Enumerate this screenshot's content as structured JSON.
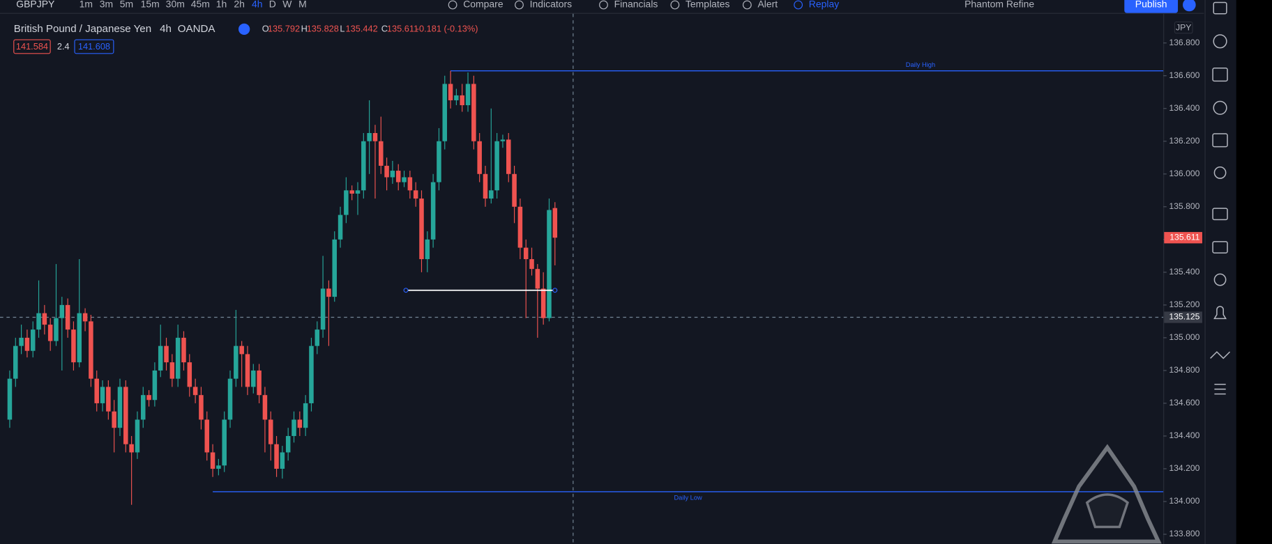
{
  "toolbar": {
    "symbol": "GBPJPY",
    "intervals": [
      "1m",
      "3m",
      "5m",
      "15m",
      "30m",
      "45m",
      "1h",
      "2h",
      "4h",
      "D",
      "W",
      "M"
    ],
    "active_interval": 8,
    "buttons": [
      "Compare",
      "Indicators",
      "Financials",
      "Templates",
      "Alert",
      "Replay"
    ],
    "layout_name": "Phantom Refine",
    "publish": "Publish"
  },
  "header": {
    "name": "British Pound / Japanese Yen",
    "interval": "4h",
    "exchange": "OANDA",
    "ohlc": [
      {
        "key": "O",
        "value": "135.792"
      },
      {
        "key": "H",
        "value": "135.828"
      },
      {
        "key": "L",
        "value": "135.442"
      },
      {
        "key": "C",
        "value": "135.611"
      }
    ],
    "change": "-0.181 (-0.13%)",
    "sell": "141.584",
    "spread": "2.4",
    "buy": "141.608"
  },
  "chart_data": {
    "type": "candlestick",
    "currency": "JPY",
    "up_color": "#26a69a",
    "down_color": "#ef5350",
    "open": [
      134.5,
      134.75,
      134.95,
      135.0,
      134.92,
      135.05,
      135.15,
      135.08,
      134.98,
      135.12,
      135.2,
      135.05,
      134.85,
      135.15,
      135.1,
      134.75,
      134.6,
      134.7,
      134.55,
      134.45,
      134.7,
      134.35,
      134.3,
      134.5,
      134.65,
      134.62,
      134.8,
      134.95,
      134.85,
      134.75,
      135.0,
      134.85,
      134.7,
      134.65,
      134.5,
      134.3,
      134.2,
      134.22,
      134.5,
      134.75,
      134.95,
      134.9,
      134.7,
      134.8,
      134.65,
      134.5,
      134.35,
      134.2,
      134.3,
      134.4,
      134.5,
      134.45,
      134.6,
      134.95,
      135.05,
      135.3,
      135.25,
      135.6,
      135.75,
      135.9,
      135.88,
      135.9,
      136.2,
      136.25,
      136.2,
      136.05,
      135.98,
      136.02,
      135.95,
      135.98,
      135.9,
      135.85,
      135.48,
      135.6,
      135.95,
      136.2,
      136.55,
      136.45,
      136.48,
      136.42,
      136.55,
      136.2,
      136.0,
      135.85,
      135.9,
      136.2,
      136.21,
      136.0,
      135.8,
      135.55,
      135.48,
      135.42,
      135.3,
      135.12,
      135.792
    ],
    "high": [
      134.8,
      135.0,
      135.08,
      135.05,
      135.1,
      135.35,
      135.2,
      135.12,
      135.45,
      135.25,
      135.24,
      135.1,
      135.48,
      135.18,
      135.14,
      134.8,
      134.74,
      134.74,
      134.62,
      134.75,
      134.74,
      134.4,
      134.55,
      134.7,
      134.68,
      134.85,
      135.08,
      135.0,
      134.9,
      135.08,
      135.04,
      134.9,
      134.75,
      134.7,
      134.55,
      134.35,
      134.26,
      134.55,
      134.8,
      135.17,
      134.98,
      134.95,
      134.84,
      134.84,
      134.7,
      134.55,
      134.4,
      134.34,
      134.45,
      134.55,
      134.55,
      134.65,
      135.0,
      135.1,
      135.5,
      135.35,
      135.65,
      135.8,
      135.98,
      135.93,
      135.95,
      136.25,
      136.45,
      136.3,
      136.35,
      136.1,
      136.08,
      136.06,
      136.02,
      136.02,
      135.95,
      135.9,
      135.65,
      136.0,
      136.28,
      136.6,
      136.63,
      136.52,
      136.55,
      136.62,
      136.6,
      136.25,
      136.05,
      136.4,
      136.25,
      136.24,
      136.25,
      136.05,
      135.85,
      135.6,
      135.55,
      135.45,
      135.4,
      135.85,
      135.828
    ],
    "low": [
      134.45,
      134.7,
      134.9,
      134.88,
      134.88,
      135.0,
      135.02,
      134.92,
      134.95,
      134.8,
      135.0,
      134.8,
      134.82,
      135.04,
      134.7,
      134.55,
      134.55,
      134.5,
      134.3,
      134.4,
      134.3,
      133.98,
      134.26,
      134.45,
      134.58,
      134.58,
      134.76,
      134.8,
      134.7,
      134.7,
      134.8,
      134.64,
      134.6,
      134.44,
      134.25,
      134.15,
      134.16,
      134.18,
      134.45,
      134.7,
      134.7,
      134.65,
      134.66,
      134.6,
      134.3,
      134.25,
      134.15,
      134.14,
      134.25,
      134.36,
      134.4,
      134.4,
      134.55,
      134.9,
      135.0,
      134.95,
      135.22,
      135.55,
      135.7,
      135.84,
      135.75,
      135.85,
      136.0,
      135.85,
      136.0,
      135.9,
      135.94,
      135.9,
      135.92,
      135.85,
      135.8,
      135.4,
      135.4,
      135.55,
      135.9,
      136.15,
      136.4,
      136.42,
      136.38,
      136.38,
      136.15,
      135.95,
      135.8,
      135.82,
      135.85,
      136.16,
      135.95,
      135.7,
      135.48,
      135.12,
      135.38,
      135.0,
      135.08,
      135.1,
      135.442
    ],
    "close": [
      134.75,
      134.95,
      135.0,
      134.92,
      135.05,
      135.15,
      135.08,
      134.98,
      135.12,
      135.2,
      135.05,
      134.85,
      135.15,
      135.1,
      134.75,
      134.6,
      134.7,
      134.55,
      134.45,
      134.7,
      134.35,
      134.3,
      134.5,
      134.65,
      134.62,
      134.8,
      134.95,
      134.85,
      134.75,
      135.0,
      134.85,
      134.7,
      134.65,
      134.5,
      134.3,
      134.2,
      134.22,
      134.5,
      134.75,
      134.95,
      134.9,
      134.7,
      134.8,
      134.65,
      134.5,
      134.35,
      134.2,
      134.3,
      134.4,
      134.5,
      134.45,
      134.6,
      134.95,
      135.05,
      135.3,
      135.25,
      135.6,
      135.75,
      135.9,
      135.88,
      135.9,
      136.2,
      136.25,
      136.2,
      136.05,
      135.98,
      136.02,
      135.95,
      135.98,
      135.9,
      135.85,
      135.48,
      135.6,
      135.95,
      136.2,
      136.55,
      136.45,
      136.48,
      136.42,
      136.55,
      136.2,
      136.0,
      135.85,
      135.9,
      136.2,
      136.21,
      136.0,
      135.8,
      135.55,
      135.48,
      135.42,
      135.3,
      135.12,
      135.78,
      135.611
    ],
    "ylim": [
      133.75,
      136.95
    ],
    "yticks": [
      {
        "value": 133.8,
        "label": "133.800"
      },
      {
        "value": 134.0,
        "label": "134.000"
      },
      {
        "value": 134.2,
        "label": "134.200"
      },
      {
        "value": 134.4,
        "label": "134.400"
      },
      {
        "value": 134.6,
        "label": "134.600"
      },
      {
        "value": 134.8,
        "label": "134.800"
      },
      {
        "value": 135.0,
        "label": "135.000"
      },
      {
        "value": 135.2,
        "label": "135.200"
      },
      {
        "value": 135.4,
        "label": "135.400"
      },
      {
        "value": 135.6,
        "label": "135.600"
      },
      {
        "value": 135.8,
        "label": "135.800"
      },
      {
        "value": 136.0,
        "label": "136.000"
      },
      {
        "value": 136.2,
        "label": "136.200"
      },
      {
        "value": 136.4,
        "label": "136.400"
      },
      {
        "value": 136.6,
        "label": "136.600"
      },
      {
        "value": 136.8,
        "label": "136.800"
      }
    ],
    "hlines": [
      {
        "label": "Daily High",
        "value": 136.63,
        "from": 76,
        "color": "#2962ff"
      },
      {
        "label": "Daily Low",
        "value": 134.06,
        "from": 35,
        "color": "#2962ff"
      }
    ],
    "trendline": {
      "value": 135.29,
      "from": 69,
      "to": 94,
      "color": "#ffffff"
    },
    "crosshair": {
      "value": 135.125,
      "label": "135.125"
    }
  }
}
